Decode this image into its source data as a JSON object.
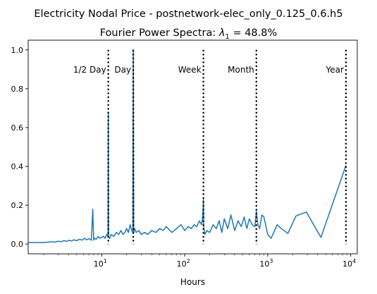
{
  "chart_data": {
    "type": "line",
    "title": "Electricity Nodal Price - postnetwork-elec_only_0.125_0.6.h5",
    "subtitle_prefix": "Fourier Power Spectra: ",
    "subtitle_symbol": "λ",
    "subtitle_subscript": "1",
    "subtitle_suffix": " = 48.8%",
    "xlabel": "Hours",
    "ylabel": "",
    "xscale": "log",
    "xlim": [
      1.3,
      12000
    ],
    "ylim": [
      -0.05,
      1.05
    ],
    "x_ticks": [
      {
        "value": 10,
        "base": "10",
        "exp": "1"
      },
      {
        "value": 100,
        "base": "10",
        "exp": "2"
      },
      {
        "value": 1000,
        "base": "10",
        "exp": "3"
      },
      {
        "value": 10000,
        "base": "10",
        "exp": "4"
      }
    ],
    "y_ticks": [
      {
        "value": 0.0,
        "label": "0.0"
      },
      {
        "value": 0.2,
        "label": "0.2"
      },
      {
        "value": 0.4,
        "label": "0.4"
      },
      {
        "value": 0.6,
        "label": "0.6"
      },
      {
        "value": 0.8,
        "label": "0.8"
      },
      {
        "value": 1.0,
        "label": "1.0"
      }
    ],
    "grid": false,
    "line_color": "#1f77b4",
    "marker_color": "#000000",
    "series": [
      {
        "x": [
          1.3,
          2.0,
          2.2,
          2.5,
          2.7,
          3.0,
          3.2,
          3.5,
          3.8,
          4.0,
          4.3,
          4.6,
          5.0,
          5.4,
          5.8,
          6.2,
          6.6,
          7.0,
          7.5,
          7.8,
          8.0,
          8.2,
          8.6,
          9.0,
          9.5,
          10.0,
          10.5,
          11.0,
          11.5,
          11.9,
          12.0,
          12.1,
          12.5,
          13.0,
          14.0,
          15.0,
          16.0,
          17.0,
          18.0,
          19.0,
          20.0,
          21.0,
          22.0,
          23.0,
          23.7,
          24.0,
          24.3,
          25.0,
          26.0,
          28.0,
          30.0,
          33.0,
          36.0,
          40.0,
          45.0,
          50.0,
          55.0,
          60.0,
          70.0,
          80.0,
          90.0,
          100.0,
          110.0,
          120.0,
          130.0,
          140.0,
          150.0,
          160.0,
          165.0,
          168.0,
          170.0,
          175.0,
          185.0,
          200.0,
          220.0,
          240.0,
          260.0,
          280.0,
          300.0,
          330.0,
          360.0,
          400.0,
          440.0,
          480.0,
          520.0,
          560.0,
          600.0,
          650.0,
          700.0,
          730.0,
          760.0,
          800.0,
          850.0,
          900.0,
          1000.0,
          1100.0,
          1300.0,
          1460.0,
          1750.0,
          2190.0,
          2920.0,
          4380.0,
          8760.0
        ],
        "y": [
          0.008,
          0.008,
          0.01,
          0.012,
          0.01,
          0.015,
          0.012,
          0.018,
          0.014,
          0.02,
          0.016,
          0.022,
          0.018,
          0.025,
          0.02,
          0.03,
          0.022,
          0.028,
          0.02,
          0.18,
          0.02,
          0.03,
          0.025,
          0.04,
          0.03,
          0.035,
          0.04,
          0.03,
          0.05,
          0.04,
          0.68,
          0.04,
          0.03,
          0.05,
          0.04,
          0.06,
          0.05,
          0.07,
          0.05,
          0.06,
          0.08,
          0.06,
          0.1,
          0.07,
          0.06,
          1.0,
          0.06,
          0.08,
          0.06,
          0.07,
          0.05,
          0.06,
          0.05,
          0.07,
          0.06,
          0.08,
          0.07,
          0.09,
          0.06,
          0.08,
          0.1,
          0.07,
          0.09,
          0.08,
          0.1,
          0.09,
          0.12,
          0.1,
          0.15,
          0.23,
          0.08,
          0.05,
          0.07,
          0.06,
          0.1,
          0.08,
          0.12,
          0.06,
          0.13,
          0.08,
          0.15,
          0.07,
          0.12,
          0.09,
          0.14,
          0.08,
          0.13,
          0.1,
          0.09,
          0.17,
          0.1,
          0.08,
          0.15,
          0.14,
          0.05,
          0.03,
          0.1,
          0.08,
          0.055,
          0.145,
          0.165,
          0.035,
          0.405
        ]
      }
    ],
    "annotations": [
      {
        "x": 12,
        "label": "1/2 Day",
        "side": "left"
      },
      {
        "x": 24,
        "label": "Day",
        "side": "left"
      },
      {
        "x": 168,
        "label": "Week",
        "side": "left"
      },
      {
        "x": 730,
        "label": "Month",
        "side": "left"
      },
      {
        "x": 8760,
        "label": "Year",
        "side": "left"
      }
    ]
  }
}
